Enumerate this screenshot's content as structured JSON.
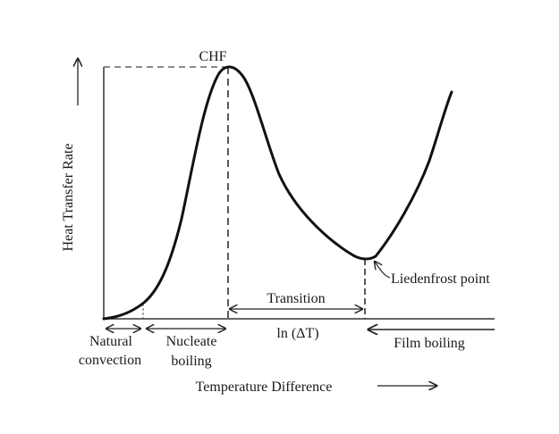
{
  "diagram": {
    "y_axis_label": "Heat Transfer Rate",
    "x_axis_label": "Temperature Difference",
    "x_axis_inline_label": "ln (ΔT)",
    "peak_label": "CHF",
    "minimum_label": "Liedenfrost point",
    "regions": {
      "natural": [
        "Natural",
        "convection"
      ],
      "nucleate": [
        "Nucleate",
        "boiling"
      ],
      "transition": "Transition",
      "film": "Film boiling"
    },
    "curve_color": "#111111"
  }
}
